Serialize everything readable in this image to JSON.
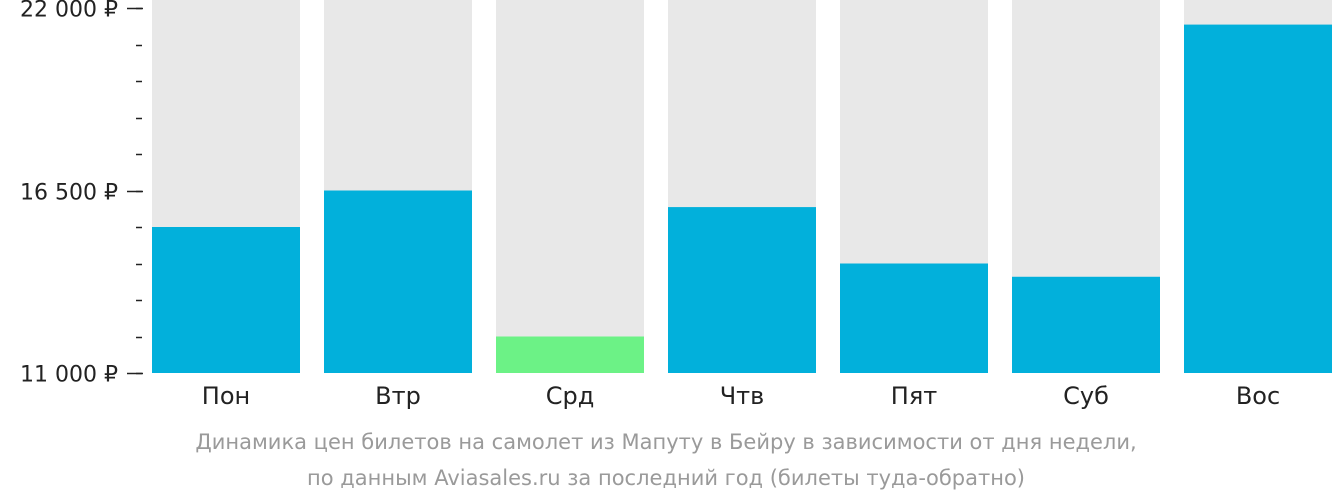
{
  "chart_data": {
    "type": "bar",
    "categories": [
      "Пон",
      "Втр",
      "Срд",
      "Чтв",
      "Пят",
      "Суб",
      "Вос"
    ],
    "values": [
      15400,
      16500,
      12100,
      16000,
      14300,
      13900,
      21500
    ],
    "ylim": [
      11000,
      22000
    ],
    "major_ticks": [
      {
        "value": 22000,
        "label": "22 000 ₽"
      },
      {
        "value": 16500,
        "label": "16 500 ₽"
      },
      {
        "value": 11000,
        "label": "11 000 ₽"
      }
    ],
    "minor_tick_step": 1100,
    "highlight_index": 2,
    "colors": {
      "bar": "#02B0DB",
      "highlight": "#6CF286",
      "track": "#E8E8E8",
      "axis": "#222222"
    },
    "grid": false,
    "legend": "none"
  },
  "caption": {
    "line1": "Динамика цен билетов на самолет из Мапуту в Бейру в зависимости от дня недели,",
    "line2": "по данным Aviasales.ru за последний год (билеты туда-обратно)"
  }
}
